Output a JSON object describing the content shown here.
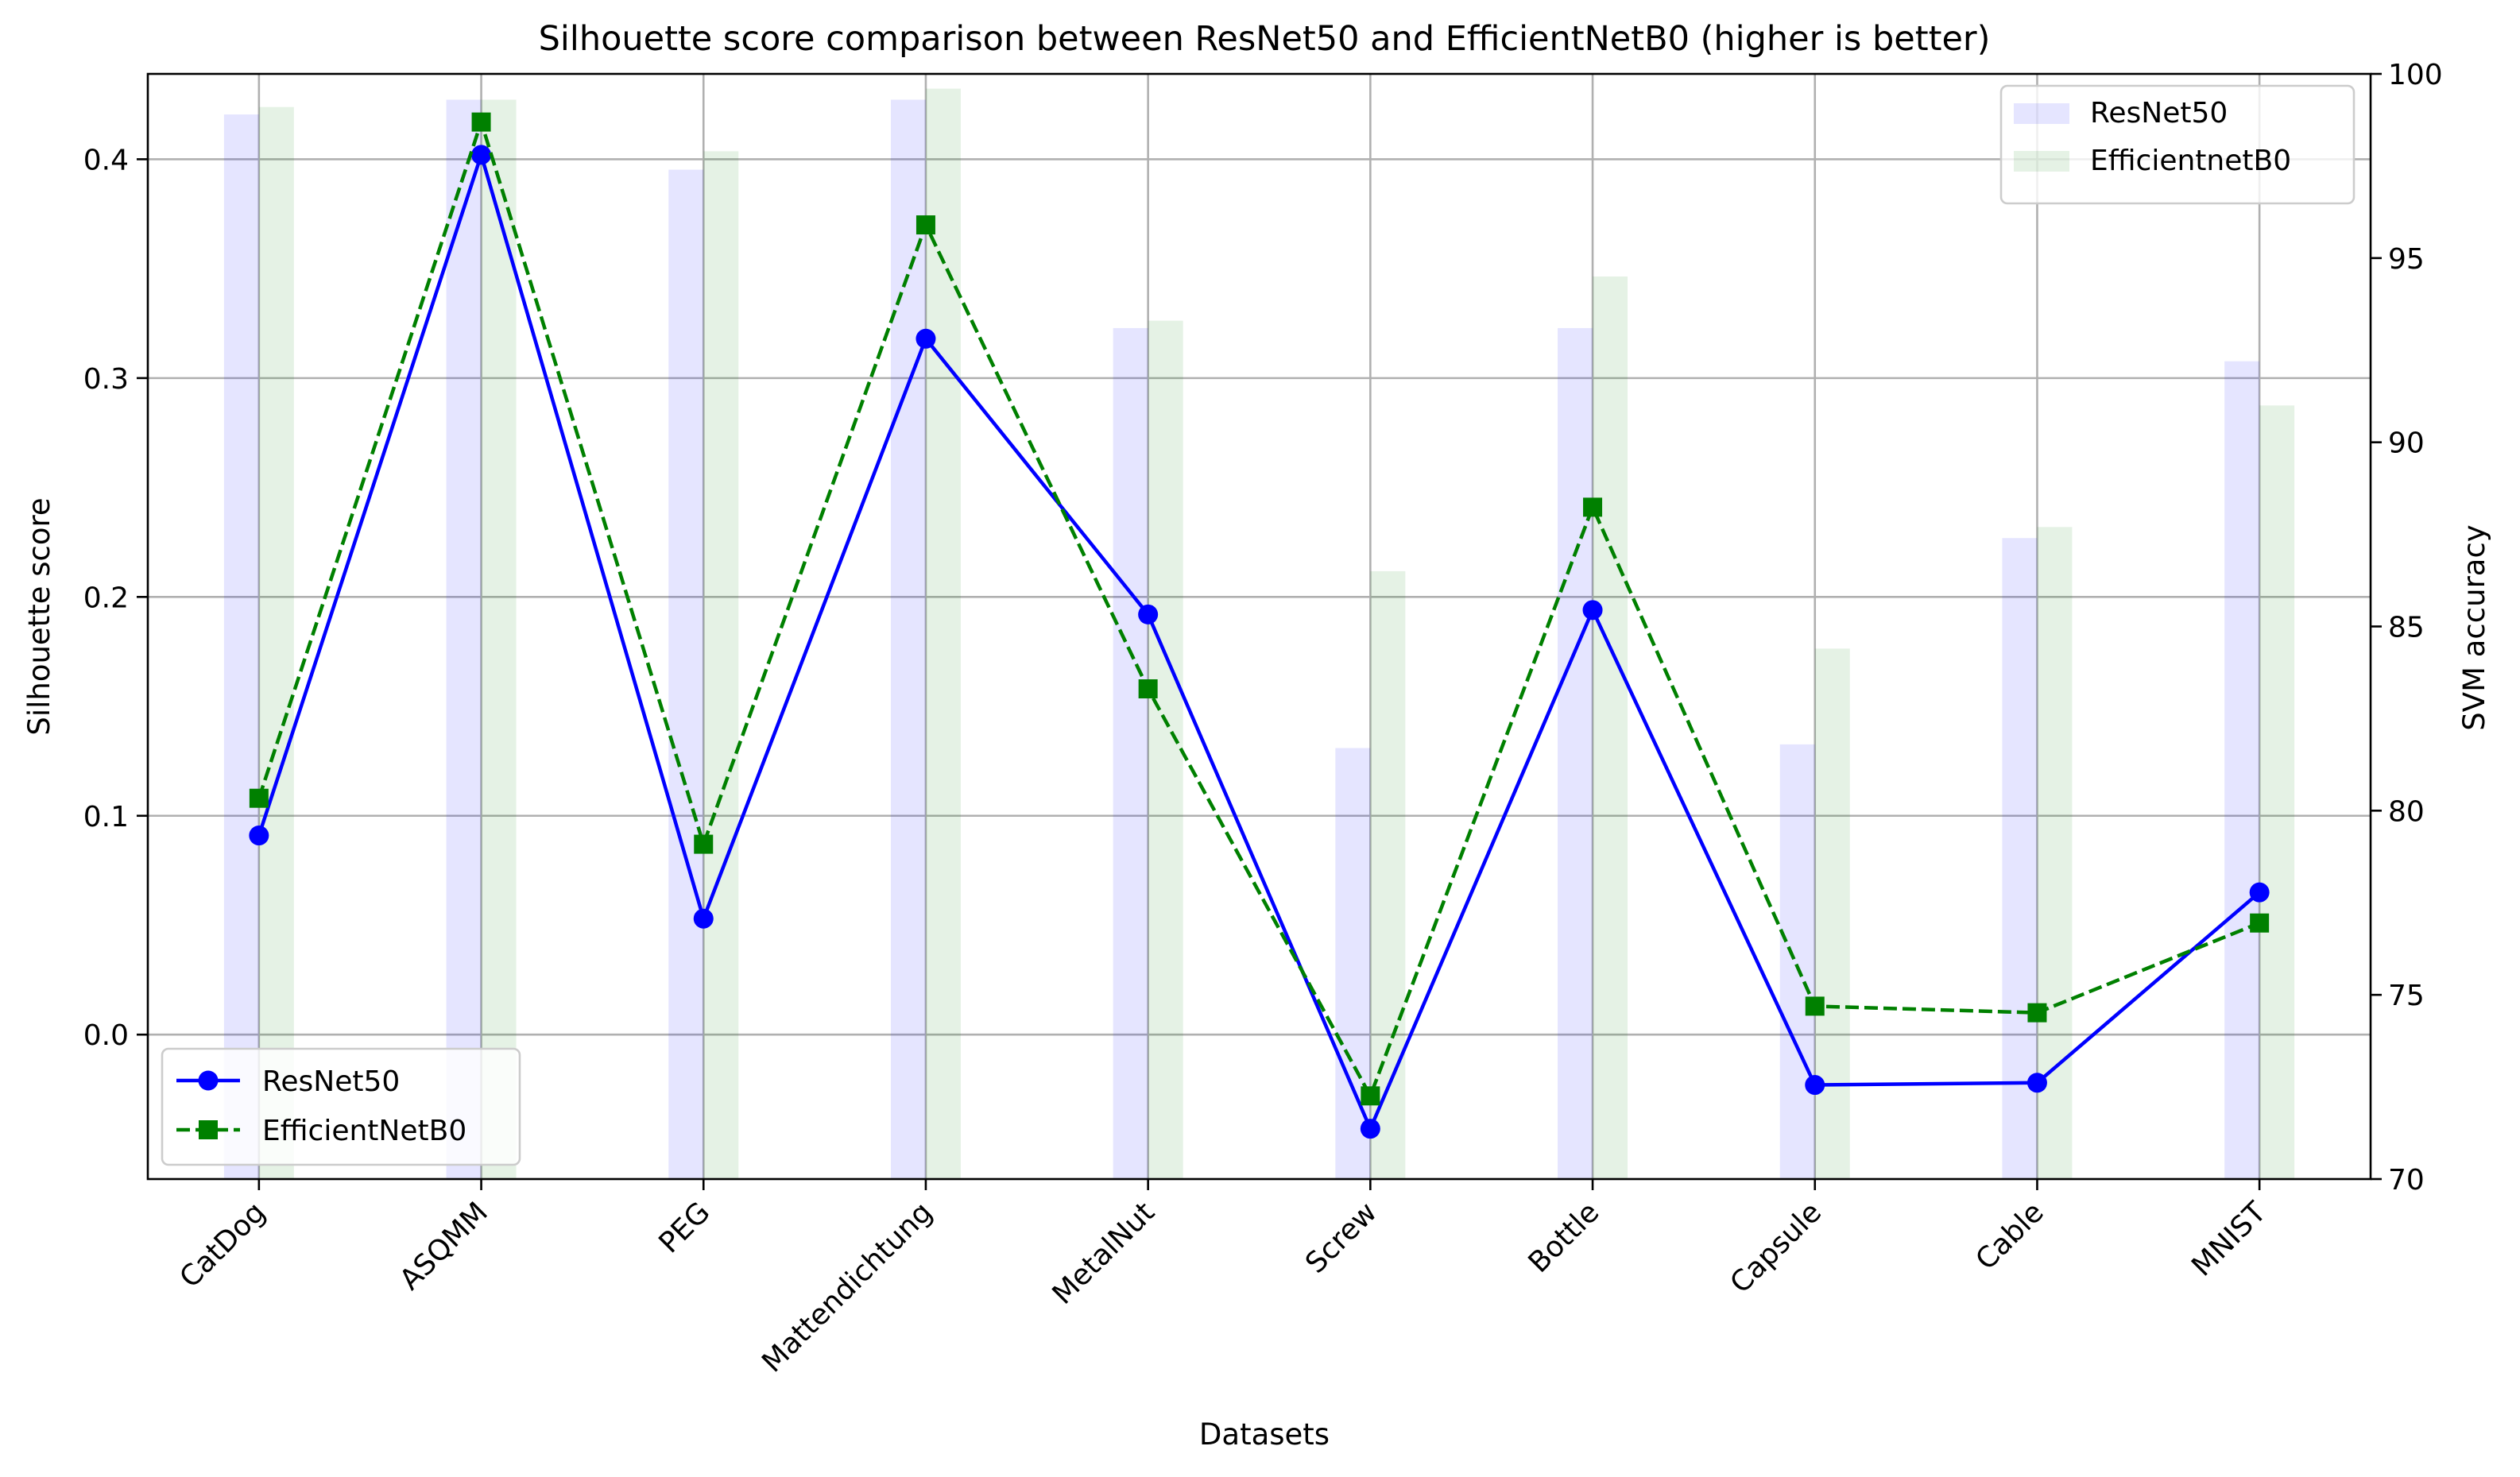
{
  "chart_data": {
    "type": "bar",
    "title": "Silhouette score comparison between ResNet50 and EfficientNetB0 (higher is better)",
    "xlabel": "Datasets",
    "ylabel": "Silhouette score",
    "ylabel_right": "SVM accuracy",
    "categories": [
      "CatDog",
      "ASQMM",
      "PEG",
      "Mattendichtung",
      "MetalNut",
      "Screw",
      "Bottle",
      "Capsule",
      "Cable",
      "MNIST"
    ],
    "ylim": [
      -0.066,
      0.439
    ],
    "ylim_right": [
      70,
      100
    ],
    "yticks_left": [
      "0.0",
      "0.1",
      "0.2",
      "0.3",
      "0.4"
    ],
    "yticks_right": [
      "70",
      "75",
      "80",
      "85",
      "90",
      "95",
      "100"
    ],
    "grid": true,
    "bar_series": [
      {
        "name": "ResNet50",
        "axis": "right",
        "color": "#0000ff",
        "opacity": 0.1,
        "values": [
          98.9,
          99.3,
          97.4,
          99.3,
          93.1,
          81.7,
          93.1,
          81.8,
          87.4,
          92.2
        ]
      },
      {
        "name": "EfficientnetB0",
        "axis": "right",
        "color": "#008000",
        "opacity": 0.1,
        "values": [
          99.1,
          99.3,
          97.9,
          99.6,
          93.3,
          86.5,
          94.5,
          84.4,
          87.7,
          91.0
        ]
      }
    ],
    "line_series": [
      {
        "name": "ResNet50",
        "axis": "left",
        "color": "#0000ff",
        "style": "solid",
        "marker": "circle",
        "values": [
          0.091,
          0.402,
          0.053,
          0.318,
          0.192,
          -0.043,
          0.194,
          -0.023,
          -0.022,
          0.065
        ]
      },
      {
        "name": "EfficientNetB0",
        "axis": "left",
        "color": "#008000",
        "style": "dashed",
        "marker": "square",
        "values": [
          0.108,
          0.417,
          0.087,
          0.37,
          0.158,
          -0.028,
          0.241,
          0.013,
          0.01,
          0.051
        ]
      }
    ],
    "legend_upper": {
      "placement": "upper-right",
      "entries": [
        "ResNet50",
        "EfficientnetB0"
      ]
    },
    "legend_lower": {
      "placement": "lower-left",
      "entries": [
        "ResNet50",
        "EfficientNetB0"
      ]
    }
  }
}
